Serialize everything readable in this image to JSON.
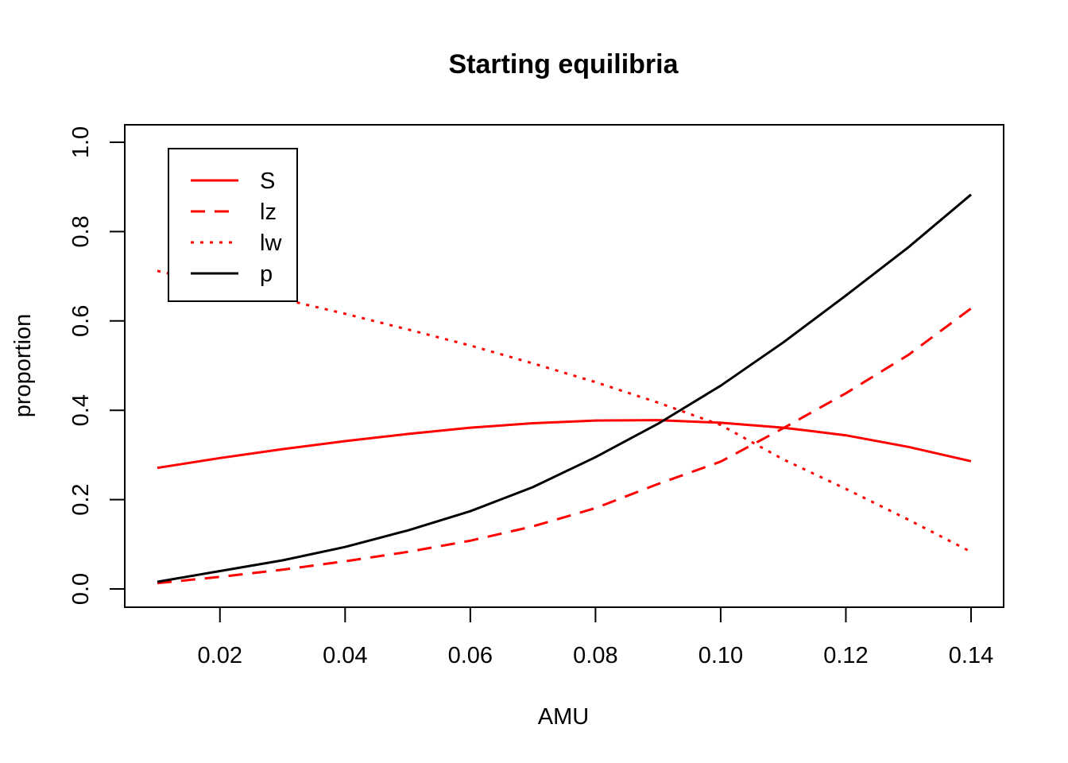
{
  "chart_data": {
    "type": "line",
    "title": "Starting equilibria",
    "xlabel": "AMU",
    "ylabel": "proportion",
    "xlim": [
      0.01,
      0.14
    ],
    "ylim": [
      0.0,
      1.0
    ],
    "x_ticks": [
      "0.02",
      "0.04",
      "0.06",
      "0.08",
      "0.10",
      "0.12",
      "0.14"
    ],
    "y_ticks": [
      "0.0",
      "0.2",
      "0.4",
      "0.6",
      "0.8",
      "1.0"
    ],
    "x": [
      0.01,
      0.02,
      0.03,
      0.04,
      0.05,
      0.06,
      0.07,
      0.08,
      0.09,
      0.1,
      0.11,
      0.12,
      0.13,
      0.14
    ],
    "grid": false,
    "legend_position": "top-left",
    "series": [
      {
        "name": "S",
        "color": "#ff0000",
        "dash": "solid",
        "values": [
          0.271,
          0.293,
          0.313,
          0.331,
          0.347,
          0.361,
          0.371,
          0.377,
          0.378,
          0.372,
          0.361,
          0.344,
          0.318,
          0.286
        ]
      },
      {
        "name": "lz",
        "color": "#ff0000",
        "dash": "dashed",
        "values": [
          0.013,
          0.027,
          0.043,
          0.062,
          0.083,
          0.108,
          0.14,
          0.181,
          0.235,
          0.285,
          0.36,
          0.438,
          0.524,
          0.628
        ]
      },
      {
        "name": "lw",
        "color": "#ff0000",
        "dash": "dotted",
        "values": [
          0.712,
          0.681,
          0.649,
          0.616,
          0.581,
          0.545,
          0.505,
          0.463,
          0.417,
          0.367,
          0.29,
          0.224,
          0.155,
          0.083
        ]
      },
      {
        "name": "p",
        "color": "#000000",
        "dash": "solid",
        "values": [
          0.016,
          0.04,
          0.064,
          0.094,
          0.131,
          0.174,
          0.228,
          0.295,
          0.37,
          0.455,
          0.552,
          0.657,
          0.765,
          0.883
        ]
      }
    ]
  }
}
